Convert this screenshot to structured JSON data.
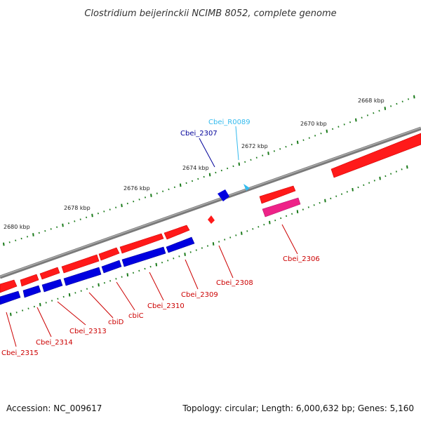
{
  "title": "Clostridium beijerinckii NCIMB 8052, complete genome",
  "accession": "Accession: NC_009617",
  "topology": "Topology: circular; Length: 6,000,632 bp; Genes: 5,160",
  "colors": {
    "forward_gene": "#ff1a1a",
    "reverse_gene": "#0000e0",
    "rna_gene": "#33bbee",
    "pseudo_gene": "#ee2288",
    "label_red": "#cc0000",
    "label_blue": "#000099",
    "label_cyan": "#33bbee",
    "backbone": "#7a7a7a",
    "tick": "#1a7a1a"
  },
  "scale_labels": [
    "2668 kbp",
    "2670 kbp",
    "2672 kbp",
    "2674 kbp",
    "2676 kbp",
    "2678 kbp",
    "2680 kbp"
  ],
  "genes": [
    {
      "name": "Cbei_R0089",
      "color": "label_cyan"
    },
    {
      "name": "Cbei_2307",
      "color": "label_blue"
    },
    {
      "name": "Cbei_2306",
      "color": "label_red"
    },
    {
      "name": "Cbei_2308",
      "color": "label_red"
    },
    {
      "name": "Cbei_2309",
      "color": "label_red"
    },
    {
      "name": "Cbei_2310",
      "color": "label_red"
    },
    {
      "name": "cbiC",
      "color": "label_red"
    },
    {
      "name": "cbiD",
      "color": "label_red"
    },
    {
      "name": "Cbei_2313",
      "color": "label_red"
    },
    {
      "name": "Cbei_2314",
      "color": "label_red"
    },
    {
      "name": "Cbei_2315",
      "color": "label_red"
    }
  ]
}
